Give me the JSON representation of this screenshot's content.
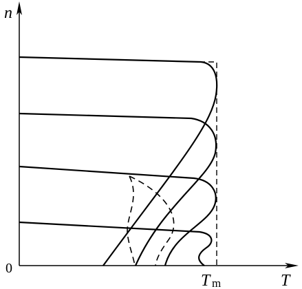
{
  "labels": {
    "n_axis": "n",
    "origin": "0",
    "tm": {
      "main": "T",
      "sub": "m"
    },
    "t_axis": "T"
  }
}
